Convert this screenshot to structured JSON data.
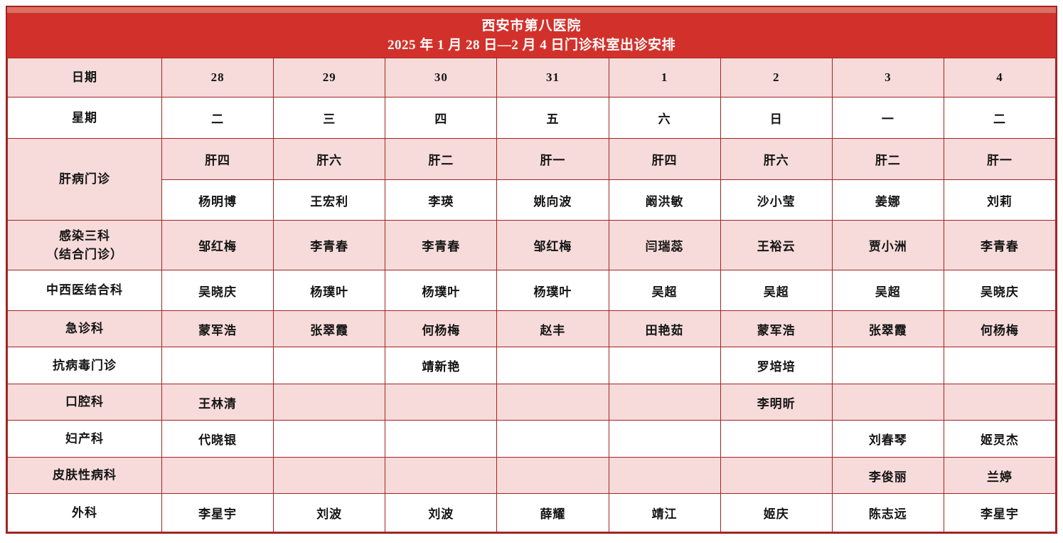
{
  "colors": {
    "header_red": "#d2312b",
    "header_strip": "#de6f63",
    "row_pink": "#f6dbda",
    "border_red": "#a22424",
    "header_text": "#ffffff",
    "text": "#141414"
  },
  "header": {
    "title_line1": "西安市第八医院",
    "title_line2": "2025 年 1 月 28 日—2 月 4 日门诊科室出诊安排"
  },
  "table": {
    "rows": [
      {
        "label": "日期",
        "shade": "pink",
        "cells": [
          "28",
          "29",
          "30",
          "31",
          "1",
          "2",
          "3",
          "4"
        ]
      },
      {
        "label": "星期",
        "shade": "white",
        "cells": [
          "二",
          "三",
          "四",
          "五",
          "六",
          "日",
          "一",
          "二"
        ]
      },
      {
        "label": "肝病门诊",
        "label_rowspan": 2,
        "shade": "pink",
        "cells": [
          "肝四",
          "肝六",
          "肝二",
          "肝一",
          "肝四",
          "肝六",
          "肝二",
          "肝一"
        ]
      },
      {
        "label": null,
        "shade": "white",
        "cells": [
          "杨明博",
          "王宏利",
          "李瑛",
          "姚向波",
          "阚洪敏",
          "沙小莹",
          "姜娜",
          "刘莉"
        ]
      },
      {
        "label": "感染三科\n（结合门诊）",
        "shade": "pink",
        "cells": [
          "邹红梅",
          "李青春",
          "李青春",
          "邹红梅",
          "闫瑞蕊",
          "王裕云",
          "贾小洲",
          "李青春"
        ]
      },
      {
        "label": "中西医结合科",
        "shade": "white",
        "cells": [
          "吴晓庆",
          "杨璞叶",
          "杨璞叶",
          "杨璞叶",
          "吴超",
          "吴超",
          "吴超",
          "吴晓庆"
        ]
      },
      {
        "label": "急诊科",
        "shade": "pink",
        "cells": [
          "蒙军浩",
          "张翠霞",
          "何杨梅",
          "赵丰",
          "田艳茹",
          "蒙军浩",
          "张翠霞",
          "何杨梅"
        ]
      },
      {
        "label": "抗病毒门诊",
        "shade": "white",
        "cells": [
          "",
          "",
          "靖新艳",
          "",
          "",
          "罗培培",
          "",
          ""
        ]
      },
      {
        "label": "口腔科",
        "shade": "pink",
        "cells": [
          "王林清",
          "",
          "",
          "",
          "",
          "李明昕",
          "",
          ""
        ]
      },
      {
        "label": "妇产科",
        "shade": "white",
        "cells": [
          "代晓银",
          "",
          "",
          "",
          "",
          "",
          "刘春琴",
          "姬灵杰"
        ]
      },
      {
        "label": "皮肤性病科",
        "shade": "pink",
        "cells": [
          "",
          "",
          "",
          "",
          "",
          "",
          "李俊丽",
          "兰婷"
        ]
      },
      {
        "label": "外科",
        "shade": "white",
        "cells": [
          "李星宇",
          "刘波",
          "刘波",
          "薛耀",
          "靖江",
          "姬庆",
          "陈志远",
          "李星宇"
        ]
      }
    ]
  }
}
